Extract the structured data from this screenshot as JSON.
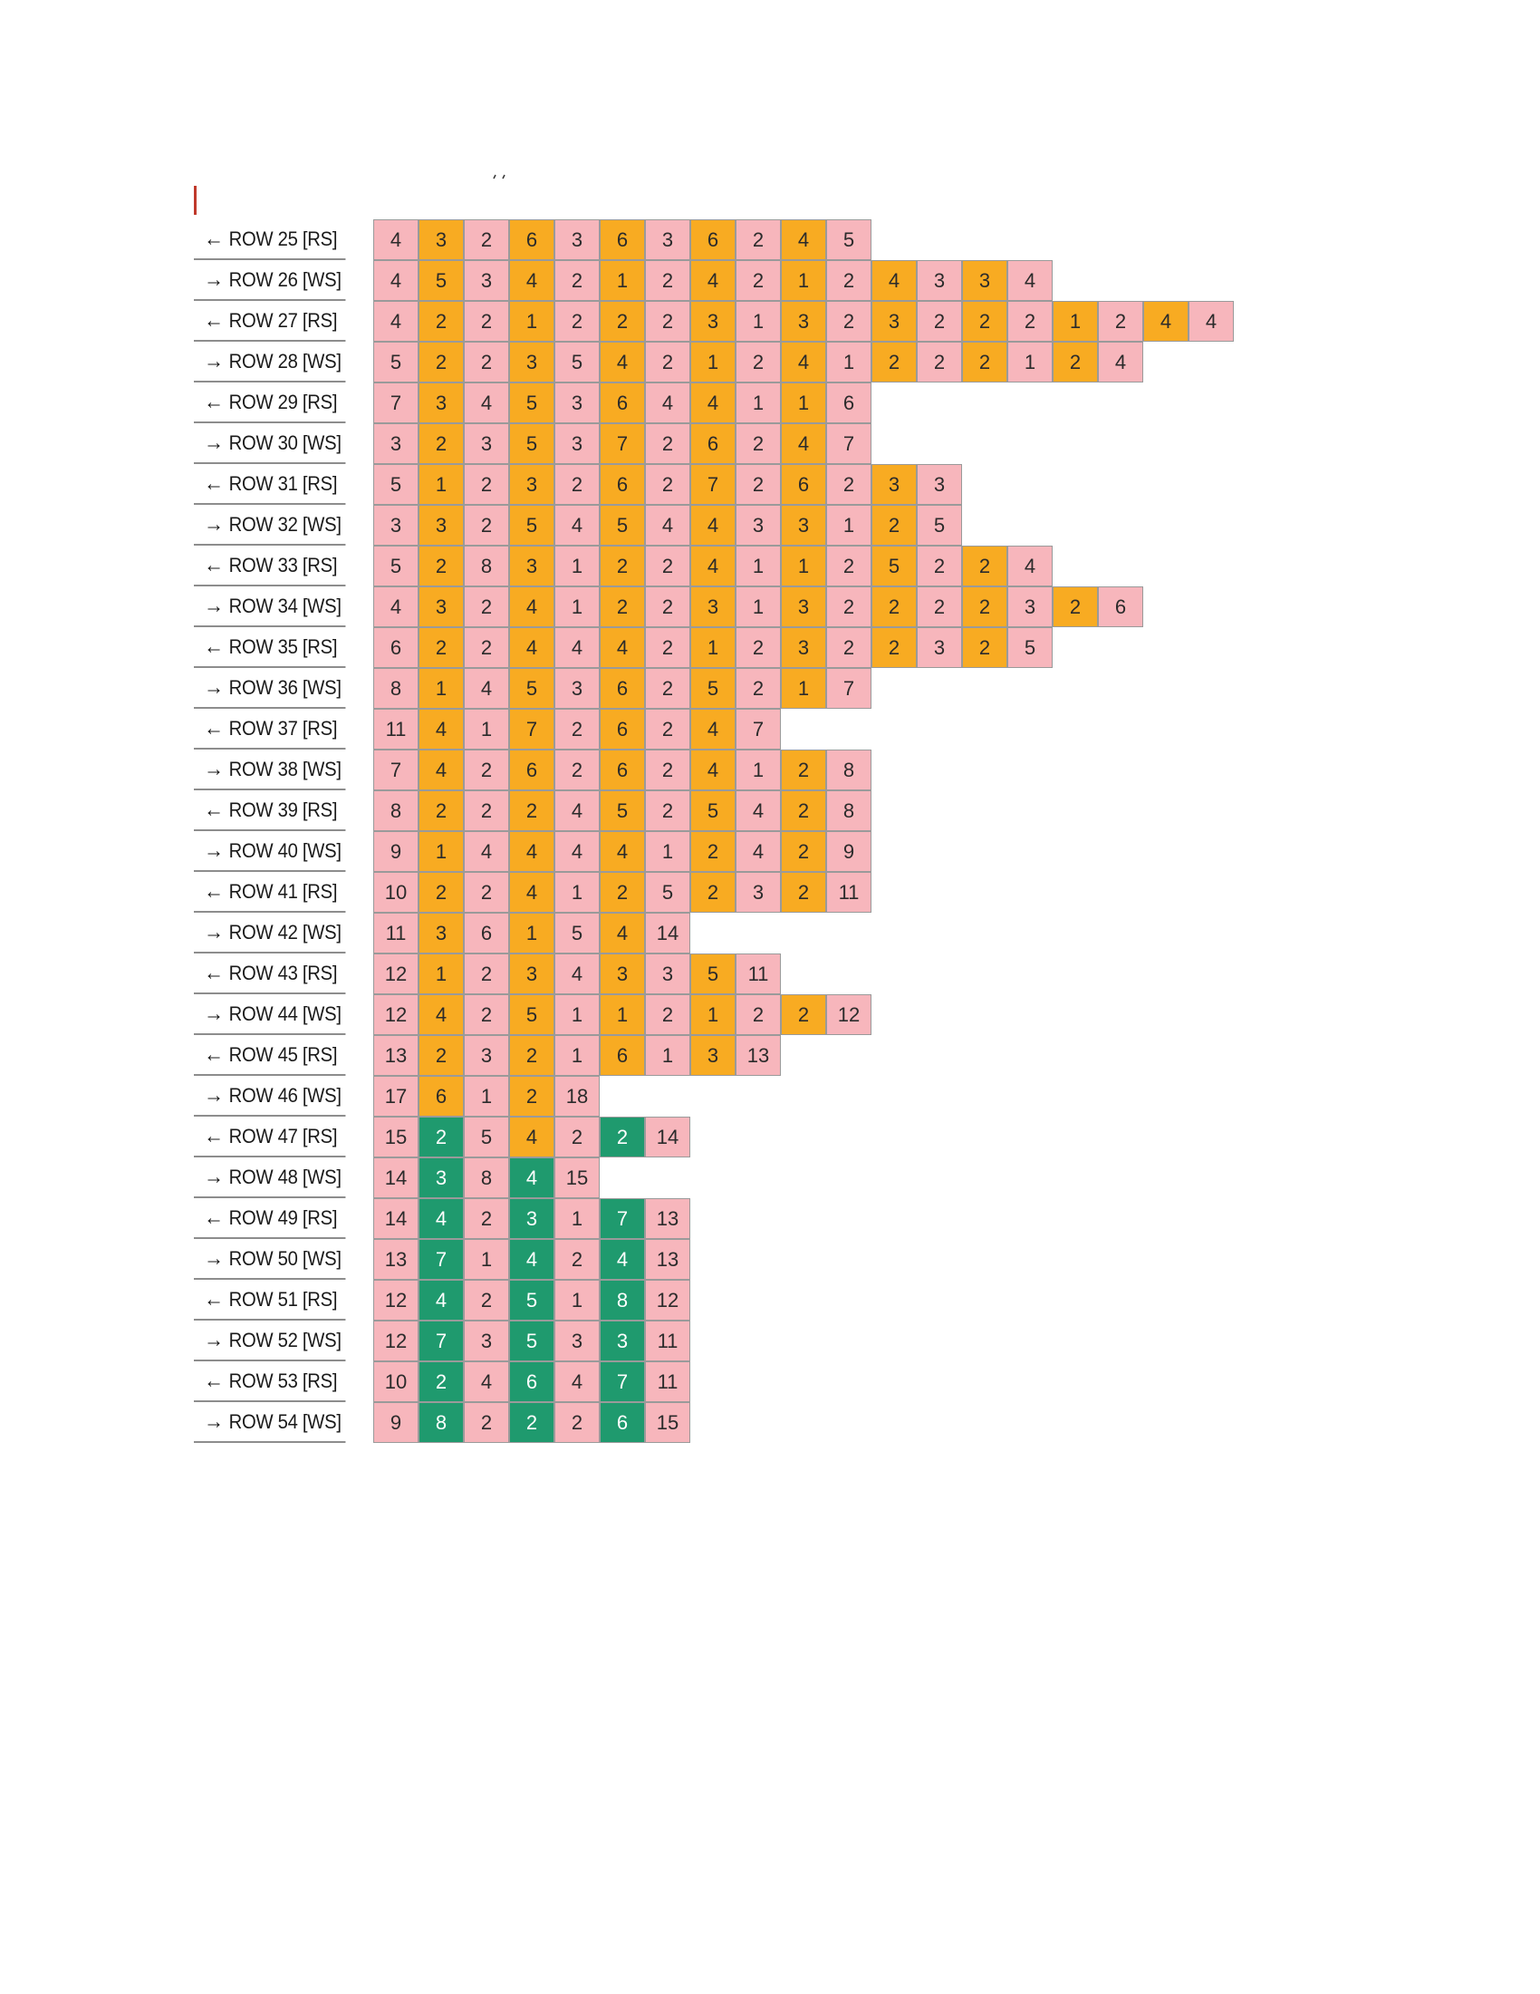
{
  "colors": {
    "pink": "#f7b6bc",
    "orange": "#f8ab22",
    "green": "#1f9a6e",
    "cursor": "#c0392b"
  },
  "rows": [
    {
      "dir": "left",
      "label": "ROW 25 [RS]",
      "cells": [
        [
          "4",
          "p"
        ],
        [
          "3",
          "o"
        ],
        [
          "2",
          "p"
        ],
        [
          "6",
          "o"
        ],
        [
          "3",
          "p"
        ],
        [
          "6",
          "o"
        ],
        [
          "3",
          "p"
        ],
        [
          "6",
          "o"
        ],
        [
          "2",
          "p"
        ],
        [
          "4",
          "o"
        ],
        [
          "5",
          "p"
        ]
      ]
    },
    {
      "dir": "right",
      "label": "ROW 26 [WS]",
      "cells": [
        [
          "4",
          "p"
        ],
        [
          "5",
          "o"
        ],
        [
          "3",
          "p"
        ],
        [
          "4",
          "o"
        ],
        [
          "2",
          "p"
        ],
        [
          "1",
          "o"
        ],
        [
          "2",
          "p"
        ],
        [
          "4",
          "o"
        ],
        [
          "2",
          "p"
        ],
        [
          "1",
          "o"
        ],
        [
          "2",
          "p"
        ],
        [
          "4",
          "o"
        ],
        [
          "3",
          "p"
        ],
        [
          "3",
          "o"
        ],
        [
          "4",
          "p"
        ]
      ]
    },
    {
      "dir": "left",
      "label": "ROW 27 [RS]",
      "cells": [
        [
          "4",
          "p"
        ],
        [
          "2",
          "o"
        ],
        [
          "2",
          "p"
        ],
        [
          "1",
          "o"
        ],
        [
          "2",
          "p"
        ],
        [
          "2",
          "o"
        ],
        [
          "2",
          "p"
        ],
        [
          "3",
          "o"
        ],
        [
          "1",
          "p"
        ],
        [
          "3",
          "o"
        ],
        [
          "2",
          "p"
        ],
        [
          "3",
          "o"
        ],
        [
          "2",
          "p"
        ],
        [
          "2",
          "o"
        ],
        [
          "2",
          "p"
        ],
        [
          "1",
          "o"
        ],
        [
          "2",
          "p"
        ],
        [
          "4",
          "o"
        ],
        [
          "4",
          "p"
        ]
      ]
    },
    {
      "dir": "right",
      "label": "ROW 28 [WS]",
      "cells": [
        [
          "5",
          "p"
        ],
        [
          "2",
          "o"
        ],
        [
          "2",
          "p"
        ],
        [
          "3",
          "o"
        ],
        [
          "5",
          "p"
        ],
        [
          "4",
          "o"
        ],
        [
          "2",
          "p"
        ],
        [
          "1",
          "o"
        ],
        [
          "2",
          "p"
        ],
        [
          "4",
          "o"
        ],
        [
          "1",
          "p"
        ],
        [
          "2",
          "o"
        ],
        [
          "2",
          "p"
        ],
        [
          "2",
          "o"
        ],
        [
          "1",
          "p"
        ],
        [
          "2",
          "o"
        ],
        [
          "4",
          "p"
        ]
      ]
    },
    {
      "dir": "left",
      "label": "ROW 29 [RS]",
      "cells": [
        [
          "7",
          "p"
        ],
        [
          "3",
          "o"
        ],
        [
          "4",
          "p"
        ],
        [
          "5",
          "o"
        ],
        [
          "3",
          "p"
        ],
        [
          "6",
          "o"
        ],
        [
          "4",
          "p"
        ],
        [
          "4",
          "o"
        ],
        [
          "1",
          "p"
        ],
        [
          "1",
          "o"
        ],
        [
          "6",
          "p"
        ]
      ]
    },
    {
      "dir": "right",
      "label": "ROW 30 [WS]",
      "cells": [
        [
          "3",
          "p"
        ],
        [
          "2",
          "o"
        ],
        [
          "3",
          "p"
        ],
        [
          "5",
          "o"
        ],
        [
          "3",
          "p"
        ],
        [
          "7",
          "o"
        ],
        [
          "2",
          "p"
        ],
        [
          "6",
          "o"
        ],
        [
          "2",
          "p"
        ],
        [
          "4",
          "o"
        ],
        [
          "7",
          "p"
        ]
      ]
    },
    {
      "dir": "left",
      "label": "ROW 31 [RS]",
      "cells": [
        [
          "5",
          "p"
        ],
        [
          "1",
          "o"
        ],
        [
          "2",
          "p"
        ],
        [
          "3",
          "o"
        ],
        [
          "2",
          "p"
        ],
        [
          "6",
          "o"
        ],
        [
          "2",
          "p"
        ],
        [
          "7",
          "o"
        ],
        [
          "2",
          "p"
        ],
        [
          "6",
          "o"
        ],
        [
          "2",
          "p"
        ],
        [
          "3",
          "o"
        ],
        [
          "3",
          "p"
        ]
      ]
    },
    {
      "dir": "right",
      "label": "ROW 32 [WS]",
      "cells": [
        [
          "3",
          "p"
        ],
        [
          "3",
          "o"
        ],
        [
          "2",
          "p"
        ],
        [
          "5",
          "o"
        ],
        [
          "4",
          "p"
        ],
        [
          "5",
          "o"
        ],
        [
          "4",
          "p"
        ],
        [
          "4",
          "o"
        ],
        [
          "3",
          "p"
        ],
        [
          "3",
          "o"
        ],
        [
          "1",
          "p"
        ],
        [
          "2",
          "o"
        ],
        [
          "5",
          "p"
        ]
      ]
    },
    {
      "dir": "left",
      "label": "ROW 33 [RS]",
      "cells": [
        [
          "5",
          "p"
        ],
        [
          "2",
          "o"
        ],
        [
          "8",
          "p"
        ],
        [
          "3",
          "o"
        ],
        [
          "1",
          "p"
        ],
        [
          "2",
          "o"
        ],
        [
          "2",
          "p"
        ],
        [
          "4",
          "o"
        ],
        [
          "1",
          "p"
        ],
        [
          "1",
          "o"
        ],
        [
          "2",
          "p"
        ],
        [
          "5",
          "o"
        ],
        [
          "2",
          "p"
        ],
        [
          "2",
          "o"
        ],
        [
          "4",
          "p"
        ]
      ]
    },
    {
      "dir": "right",
      "label": "ROW 34 [WS]",
      "cells": [
        [
          "4",
          "p"
        ],
        [
          "3",
          "o"
        ],
        [
          "2",
          "p"
        ],
        [
          "4",
          "o"
        ],
        [
          "1",
          "p"
        ],
        [
          "2",
          "o"
        ],
        [
          "2",
          "p"
        ],
        [
          "3",
          "o"
        ],
        [
          "1",
          "p"
        ],
        [
          "3",
          "o"
        ],
        [
          "2",
          "p"
        ],
        [
          "2",
          "o"
        ],
        [
          "2",
          "p"
        ],
        [
          "2",
          "o"
        ],
        [
          "3",
          "p"
        ],
        [
          "2",
          "o"
        ],
        [
          "6",
          "p"
        ]
      ]
    },
    {
      "dir": "left",
      "label": "ROW 35 [RS]",
      "cells": [
        [
          "6",
          "p"
        ],
        [
          "2",
          "o"
        ],
        [
          "2",
          "p"
        ],
        [
          "4",
          "o"
        ],
        [
          "4",
          "p"
        ],
        [
          "4",
          "o"
        ],
        [
          "2",
          "p"
        ],
        [
          "1",
          "o"
        ],
        [
          "2",
          "p"
        ],
        [
          "3",
          "o"
        ],
        [
          "2",
          "p"
        ],
        [
          "2",
          "o"
        ],
        [
          "3",
          "p"
        ],
        [
          "2",
          "o"
        ],
        [
          "5",
          "p"
        ]
      ]
    },
    {
      "dir": "right",
      "label": "ROW 36 [WS]",
      "cells": [
        [
          "8",
          "p"
        ],
        [
          "1",
          "o"
        ],
        [
          "4",
          "p"
        ],
        [
          "5",
          "o"
        ],
        [
          "3",
          "p"
        ],
        [
          "6",
          "o"
        ],
        [
          "2",
          "p"
        ],
        [
          "5",
          "o"
        ],
        [
          "2",
          "p"
        ],
        [
          "1",
          "o"
        ],
        [
          "7",
          "p"
        ]
      ]
    },
    {
      "dir": "left",
      "label": "ROW 37 [RS]",
      "cells": [
        [
          "11",
          "p"
        ],
        [
          "4",
          "o"
        ],
        [
          "1",
          "p"
        ],
        [
          "7",
          "o"
        ],
        [
          "2",
          "p"
        ],
        [
          "6",
          "o"
        ],
        [
          "2",
          "p"
        ],
        [
          "4",
          "o"
        ],
        [
          "7",
          "p"
        ]
      ]
    },
    {
      "dir": "right",
      "label": "ROW 38 [WS]",
      "cells": [
        [
          "7",
          "p"
        ],
        [
          "4",
          "o"
        ],
        [
          "2",
          "p"
        ],
        [
          "6",
          "o"
        ],
        [
          "2",
          "p"
        ],
        [
          "6",
          "o"
        ],
        [
          "2",
          "p"
        ],
        [
          "4",
          "o"
        ],
        [
          "1",
          "p"
        ],
        [
          "2",
          "o"
        ],
        [
          "8",
          "p"
        ]
      ]
    },
    {
      "dir": "left",
      "label": "ROW 39 [RS]",
      "cells": [
        [
          "8",
          "p"
        ],
        [
          "2",
          "o"
        ],
        [
          "2",
          "p"
        ],
        [
          "2",
          "o"
        ],
        [
          "4",
          "p"
        ],
        [
          "5",
          "o"
        ],
        [
          "2",
          "p"
        ],
        [
          "5",
          "o"
        ],
        [
          "4",
          "p"
        ],
        [
          "2",
          "o"
        ],
        [
          "8",
          "p"
        ]
      ]
    },
    {
      "dir": "right",
      "label": "ROW 40 [WS]",
      "cells": [
        [
          "9",
          "p"
        ],
        [
          "1",
          "o"
        ],
        [
          "4",
          "p"
        ],
        [
          "4",
          "o"
        ],
        [
          "4",
          "p"
        ],
        [
          "4",
          "o"
        ],
        [
          "1",
          "p"
        ],
        [
          "2",
          "o"
        ],
        [
          "4",
          "p"
        ],
        [
          "2",
          "o"
        ],
        [
          "9",
          "p"
        ]
      ]
    },
    {
      "dir": "left",
      "label": "ROW 41 [RS]",
      "cells": [
        [
          "10",
          "p"
        ],
        [
          "2",
          "o"
        ],
        [
          "2",
          "p"
        ],
        [
          "4",
          "o"
        ],
        [
          "1",
          "p"
        ],
        [
          "2",
          "o"
        ],
        [
          "5",
          "p"
        ],
        [
          "2",
          "o"
        ],
        [
          "3",
          "p"
        ],
        [
          "2",
          "o"
        ],
        [
          "11",
          "p"
        ]
      ]
    },
    {
      "dir": "right",
      "label": "ROW 42 [WS]",
      "cells": [
        [
          "11",
          "p"
        ],
        [
          "3",
          "o"
        ],
        [
          "6",
          "p"
        ],
        [
          "1",
          "o"
        ],
        [
          "5",
          "p"
        ],
        [
          "4",
          "o"
        ],
        [
          "14",
          "p"
        ]
      ]
    },
    {
      "dir": "left",
      "label": "ROW 43 [RS]",
      "cells": [
        [
          "12",
          "p"
        ],
        [
          "1",
          "o"
        ],
        [
          "2",
          "p"
        ],
        [
          "3",
          "o"
        ],
        [
          "4",
          "p"
        ],
        [
          "3",
          "o"
        ],
        [
          "3",
          "p"
        ],
        [
          "5",
          "o"
        ],
        [
          "11",
          "p"
        ]
      ]
    },
    {
      "dir": "right",
      "label": "ROW 44 [WS]",
      "cells": [
        [
          "12",
          "p"
        ],
        [
          "4",
          "o"
        ],
        [
          "2",
          "p"
        ],
        [
          "5",
          "o"
        ],
        [
          "1",
          "p"
        ],
        [
          "1",
          "o"
        ],
        [
          "2",
          "p"
        ],
        [
          "1",
          "o"
        ],
        [
          "2",
          "p"
        ],
        [
          "2",
          "o"
        ],
        [
          "12",
          "p"
        ]
      ]
    },
    {
      "dir": "left",
      "label": "ROW 45 [RS]",
      "cells": [
        [
          "13",
          "p"
        ],
        [
          "2",
          "o"
        ],
        [
          "3",
          "p"
        ],
        [
          "2",
          "o"
        ],
        [
          "1",
          "p"
        ],
        [
          "6",
          "o"
        ],
        [
          "1",
          "p"
        ],
        [
          "3",
          "o"
        ],
        [
          "13",
          "p"
        ]
      ]
    },
    {
      "dir": "right",
      "label": "ROW 46 [WS]",
      "cells": [
        [
          "17",
          "p"
        ],
        [
          "6",
          "o"
        ],
        [
          "1",
          "p"
        ],
        [
          "2",
          "o"
        ],
        [
          "18",
          "p"
        ]
      ]
    },
    {
      "dir": "left",
      "label": "ROW 47 [RS]",
      "cells": [
        [
          "15",
          "p"
        ],
        [
          "2",
          "g"
        ],
        [
          "5",
          "p"
        ],
        [
          "4",
          "o"
        ],
        [
          "2",
          "p"
        ],
        [
          "2",
          "g"
        ],
        [
          "14",
          "p"
        ]
      ]
    },
    {
      "dir": "right",
      "label": "ROW 48 [WS]",
      "cells": [
        [
          "14",
          "p"
        ],
        [
          "3",
          "g"
        ],
        [
          "8",
          "p"
        ],
        [
          "4",
          "g"
        ],
        [
          "15",
          "p"
        ]
      ]
    },
    {
      "dir": "left",
      "label": "ROW 49 [RS]",
      "cells": [
        [
          "14",
          "p"
        ],
        [
          "4",
          "g"
        ],
        [
          "2",
          "p"
        ],
        [
          "3",
          "g"
        ],
        [
          "1",
          "p"
        ],
        [
          "7",
          "g"
        ],
        [
          "13",
          "p"
        ]
      ]
    },
    {
      "dir": "right",
      "label": "ROW 50 [WS]",
      "cells": [
        [
          "13",
          "p"
        ],
        [
          "7",
          "g"
        ],
        [
          "1",
          "p"
        ],
        [
          "4",
          "g"
        ],
        [
          "2",
          "p"
        ],
        [
          "4",
          "g"
        ],
        [
          "13",
          "p"
        ]
      ]
    },
    {
      "dir": "left",
      "label": "ROW 51 [RS]",
      "cells": [
        [
          "12",
          "p"
        ],
        [
          "4",
          "g"
        ],
        [
          "2",
          "p"
        ],
        [
          "5",
          "g"
        ],
        [
          "1",
          "p"
        ],
        [
          "8",
          "g"
        ],
        [
          "12",
          "p"
        ]
      ]
    },
    {
      "dir": "right",
      "label": "ROW 52 [WS]",
      "cells": [
        [
          "12",
          "p"
        ],
        [
          "7",
          "g"
        ],
        [
          "3",
          "p"
        ],
        [
          "5",
          "g"
        ],
        [
          "3",
          "p"
        ],
        [
          "3",
          "g"
        ],
        [
          "11",
          "p"
        ]
      ]
    },
    {
      "dir": "left",
      "label": "ROW 53 [RS]",
      "cells": [
        [
          "10",
          "p"
        ],
        [
          "2",
          "g"
        ],
        [
          "4",
          "p"
        ],
        [
          "6",
          "g"
        ],
        [
          "4",
          "p"
        ],
        [
          "7",
          "g"
        ],
        [
          "11",
          "p"
        ]
      ]
    },
    {
      "dir": "right",
      "label": "ROW 54 [WS]",
      "cells": [
        [
          "9",
          "p"
        ],
        [
          "8",
          "g"
        ],
        [
          "2",
          "p"
        ],
        [
          "2",
          "g"
        ],
        [
          "2",
          "p"
        ],
        [
          "6",
          "g"
        ],
        [
          "15",
          "p"
        ]
      ]
    }
  ]
}
